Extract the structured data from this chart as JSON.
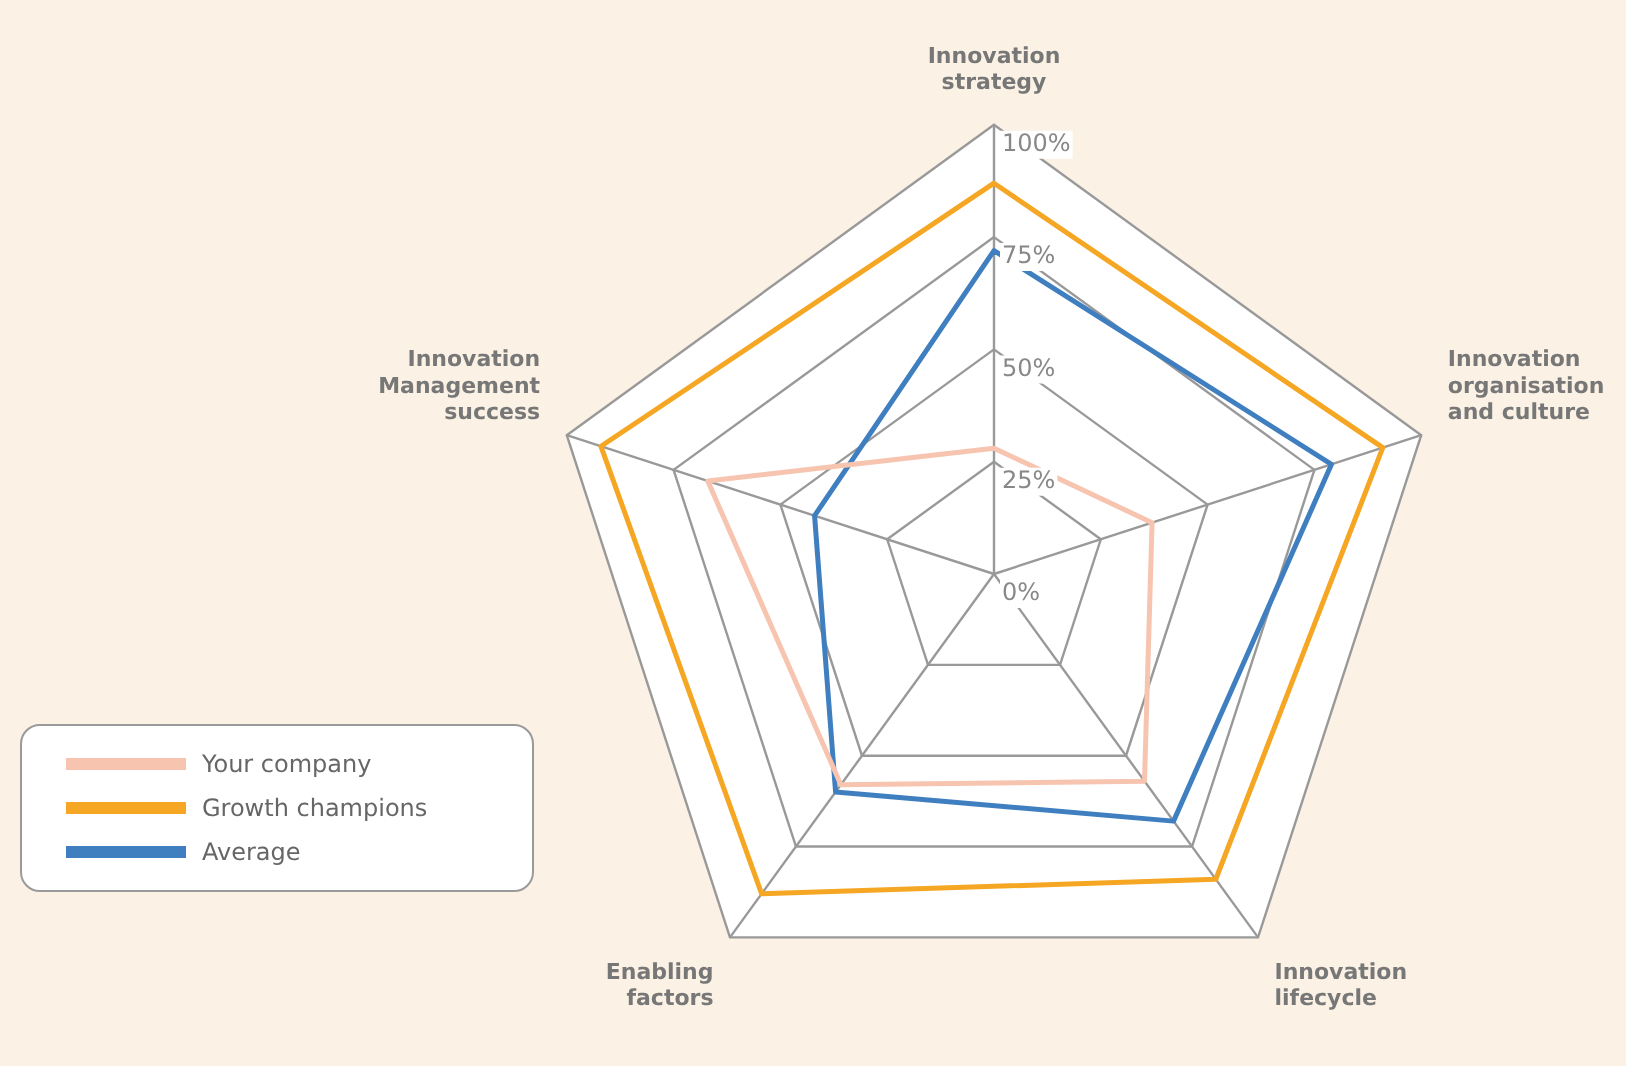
{
  "chart_data": {
    "type": "radar",
    "categories": [
      "Innovation strategy",
      "Innovation organisation and culture",
      "Innovation lifecycle",
      "Enabling factors",
      "Innovation Management success"
    ],
    "series": [
      {
        "name": "Your company",
        "color": "#f7c4b0",
        "values": [
          28,
          37,
          57,
          58,
          67
        ]
      },
      {
        "name": "Growth champions",
        "color": "#f5a623",
        "values": [
          87,
          91,
          84,
          88,
          92
        ]
      },
      {
        "name": "Average",
        "color": "#3f7fc0",
        "values": [
          72,
          79,
          68,
          60,
          42
        ]
      }
    ],
    "ylim": [
      0,
      100
    ],
    "yticks": [
      {
        "value": 0,
        "label": "0%"
      },
      {
        "value": 25,
        "label": "25%"
      },
      {
        "value": 50,
        "label": "50%"
      },
      {
        "value": 75,
        "label": "75%"
      },
      {
        "value": 100,
        "label": "100%"
      }
    ],
    "grid": true,
    "legend": "bottom left",
    "marker": "none"
  }
}
